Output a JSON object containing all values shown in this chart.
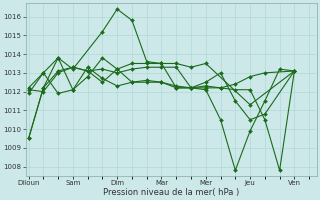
{
  "background_color": "#cce8e8",
  "grid_color": "#aad4d4",
  "line_color": "#1a6b1a",
  "xlabel": "Pression niveau de la mer( hPa )",
  "ylim": [
    1007.5,
    1016.7
  ],
  "yticks": [
    1008,
    1009,
    1010,
    1011,
    1012,
    1013,
    1014,
    1015,
    1016
  ],
  "day_labels": [
    "Diloun",
    "Sam",
    "Dim",
    "Mar",
    "Mer",
    "Jeu",
    "Ven"
  ],
  "day_tick_pos": [
    0,
    3,
    6,
    9,
    12,
    15,
    18
  ],
  "xlim": [
    -0.2,
    19.5
  ],
  "series": [
    {
      "x": [
        0,
        1,
        2,
        3,
        5,
        6,
        7,
        8,
        9,
        10,
        11,
        12,
        15,
        18
      ],
      "y": [
        1009.5,
        1012.2,
        1013.8,
        1013.2,
        1015.2,
        1016.4,
        1015.8,
        1013.6,
        1013.5,
        1013.5,
        1013.3,
        1013.5,
        1011.3,
        1013.1
      ]
    },
    {
      "x": [
        0,
        1,
        2,
        3,
        4,
        5,
        6,
        7,
        8,
        9,
        10,
        11,
        12,
        13,
        14,
        15,
        16,
        18
      ],
      "y": [
        1012.2,
        1013.0,
        1011.9,
        1012.1,
        1013.3,
        1012.7,
        1012.3,
        1012.5,
        1012.6,
        1012.5,
        1012.3,
        1012.2,
        1012.3,
        1012.2,
        1012.4,
        1012.8,
        1013.0,
        1013.1
      ]
    },
    {
      "x": [
        0,
        1,
        2,
        3,
        4,
        5,
        6,
        7,
        8,
        9,
        10,
        11,
        12,
        13,
        14,
        15,
        16,
        18
      ],
      "y": [
        1011.9,
        1013.0,
        1013.8,
        1012.1,
        1012.8,
        1013.8,
        1013.2,
        1012.5,
        1012.5,
        1012.5,
        1012.2,
        1012.2,
        1012.5,
        1013.0,
        1011.5,
        1010.5,
        1010.8,
        1013.1
      ]
    },
    {
      "x": [
        0,
        1,
        2,
        3,
        4,
        5,
        6,
        7,
        8,
        9,
        10,
        11,
        12,
        13,
        14,
        15,
        16,
        17,
        18
      ],
      "y": [
        1009.5,
        1012.2,
        1013.1,
        1013.3,
        1013.1,
        1013.2,
        1013.0,
        1013.2,
        1013.3,
        1013.3,
        1013.3,
        1012.2,
        1012.2,
        1012.2,
        1012.1,
        1012.1,
        1010.5,
        1007.8,
        1013.1
      ]
    },
    {
      "x": [
        0,
        1,
        2,
        3,
        4,
        5,
        6,
        7,
        8,
        9,
        10,
        11,
        12,
        13,
        14,
        15,
        16,
        17,
        18
      ],
      "y": [
        1012.1,
        1012.0,
        1013.0,
        1013.3,
        1013.1,
        1012.5,
        1013.2,
        1013.5,
        1013.5,
        1013.5,
        1012.2,
        1012.2,
        1012.1,
        1010.5,
        1007.8,
        1009.9,
        1011.5,
        1013.2,
        1013.1
      ]
    }
  ],
  "marker": "D",
  "markersize": 2.0,
  "linewidth": 0.8
}
